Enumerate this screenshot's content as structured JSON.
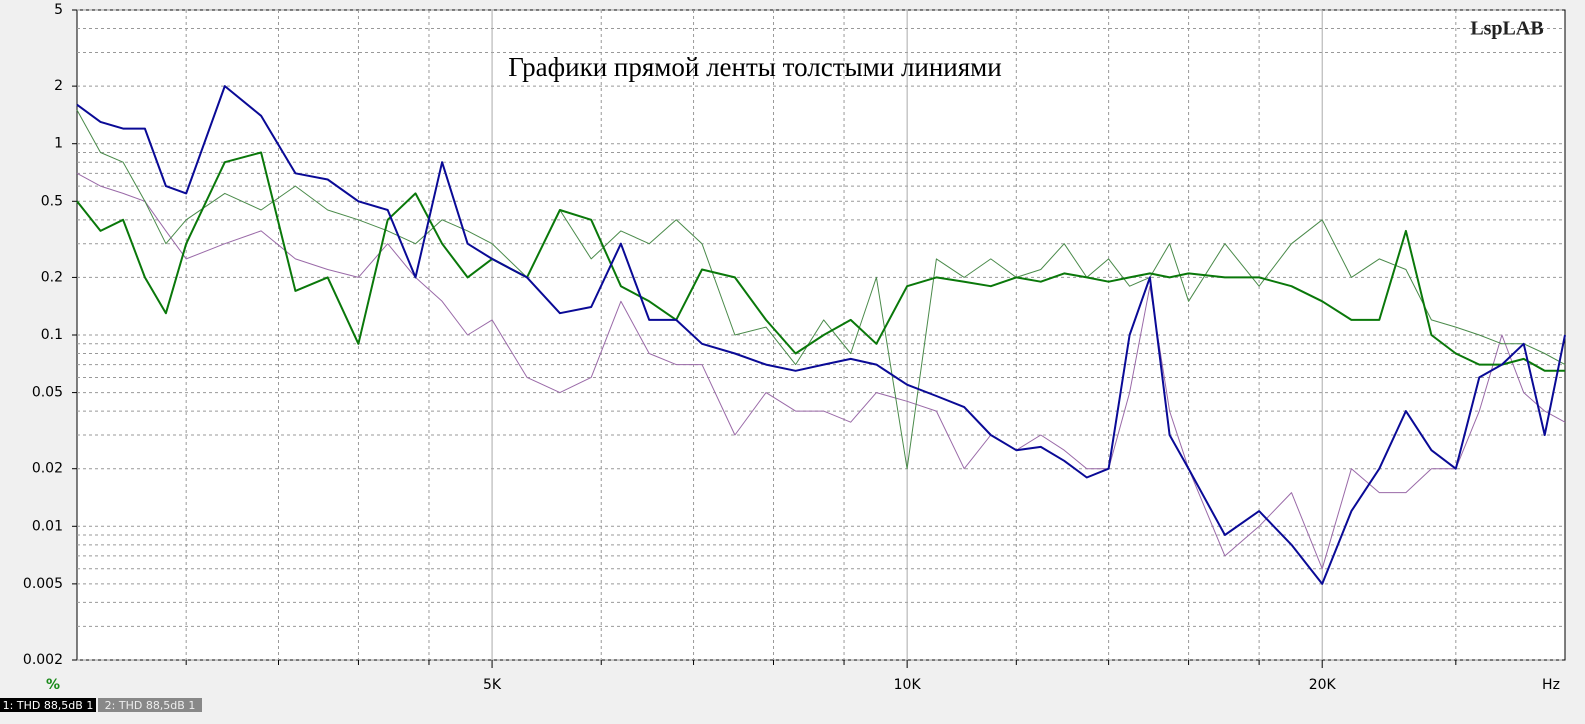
{
  "chart_data": {
    "type": "line",
    "title": "Графики прямой ленты толстыми линиями",
    "watermark": "LspLAB",
    "y_unit": "%",
    "x_unit": "Hz",
    "legend_labels": [
      "1: THD 88,5dB 1",
      "2: THD 88,5dB 1"
    ],
    "x_log": true,
    "y_log": true,
    "xlim": [
      2500,
      30000
    ],
    "ylim": [
      0.002,
      5
    ],
    "xticks": [
      {
        "value": 5000,
        "label": "5K"
      },
      {
        "value": 10000,
        "label": "10K"
      },
      {
        "value": 20000,
        "label": "20K"
      }
    ],
    "x_minor_ticks": [
      3000,
      3500,
      4000,
      4500,
      6000,
      7000,
      8000,
      9000,
      12000,
      14000,
      16000,
      18000,
      25000
    ],
    "yticks": [
      5,
      2,
      1,
      0.5,
      0.2,
      0.1,
      0.05,
      0.02,
      0.01,
      0.005,
      0.002
    ],
    "y_minor_ticks": [
      4,
      3,
      0.9,
      0.8,
      0.7,
      0.6,
      0.4,
      0.3,
      0.09,
      0.08,
      0.07,
      0.06,
      0.04,
      0.03,
      0.009,
      0.008,
      0.007,
      0.006,
      0.004,
      0.003
    ],
    "x": [
      2500,
      2600,
      2700,
      2800,
      2900,
      3000,
      3200,
      3400,
      3600,
      3800,
      4000,
      4200,
      4400,
      4600,
      4800,
      5000,
      5300,
      5600,
      5900,
      6200,
      6500,
      6800,
      7100,
      7500,
      7900,
      8300,
      8700,
      9100,
      9500,
      10000,
      10500,
      11000,
      11500,
      12000,
      12500,
      13000,
      13500,
      14000,
      14500,
      15000,
      15500,
      16000,
      17000,
      18000,
      19000,
      20000,
      21000,
      22000,
      23000,
      24000,
      25000,
      26000,
      27000,
      28000,
      29000,
      30000
    ],
    "series": [
      {
        "color": "#9a6aa8",
        "width": 1,
        "values": [
          0.7,
          0.6,
          0.55,
          0.5,
          0.35,
          0.25,
          0.3,
          0.35,
          0.25,
          0.22,
          0.2,
          0.3,
          0.2,
          0.15,
          0.1,
          0.12,
          0.06,
          0.05,
          0.06,
          0.15,
          0.08,
          0.07,
          0.07,
          0.03,
          0.05,
          0.04,
          0.04,
          0.035,
          0.05,
          0.045,
          0.04,
          0.02,
          0.03,
          0.025,
          0.03,
          0.025,
          0.02,
          0.02,
          0.05,
          0.18,
          0.04,
          0.02,
          0.007,
          0.01,
          0.015,
          0.006,
          0.02,
          0.015,
          0.015,
          0.02,
          0.02,
          0.04,
          0.1,
          0.05,
          0.04,
          0.035
        ]
      },
      {
        "color": "#4a8a4a",
        "width": 1,
        "values": [
          1.5,
          0.9,
          0.8,
          0.5,
          0.3,
          0.4,
          0.55,
          0.45,
          0.6,
          0.45,
          0.4,
          0.35,
          0.3,
          0.4,
          0.35,
          0.3,
          0.2,
          0.45,
          0.25,
          0.35,
          0.3,
          0.4,
          0.3,
          0.1,
          0.11,
          0.07,
          0.12,
          0.08,
          0.2,
          0.02,
          0.25,
          0.2,
          0.25,
          0.2,
          0.22,
          0.3,
          0.2,
          0.25,
          0.18,
          0.2,
          0.3,
          0.15,
          0.3,
          0.18,
          0.3,
          0.4,
          0.2,
          0.25,
          0.22,
          0.12,
          0.11,
          0.1,
          0.09,
          0.09,
          0.08,
          0.07
        ]
      },
      {
        "color": "#0a780a",
        "width": 2,
        "values": [
          0.5,
          0.35,
          0.4,
          0.2,
          0.13,
          0.3,
          0.8,
          0.9,
          0.17,
          0.2,
          0.09,
          0.4,
          0.55,
          0.3,
          0.2,
          0.25,
          0.2,
          0.45,
          0.4,
          0.18,
          0.15,
          0.12,
          0.22,
          0.2,
          0.12,
          0.08,
          0.1,
          0.12,
          0.09,
          0.18,
          0.2,
          0.19,
          0.18,
          0.2,
          0.19,
          0.21,
          0.2,
          0.19,
          0.2,
          0.21,
          0.2,
          0.21,
          0.2,
          0.2,
          0.18,
          0.15,
          0.12,
          0.12,
          0.35,
          0.1,
          0.08,
          0.07,
          0.07,
          0.075,
          0.065,
          0.065
        ]
      },
      {
        "color": "#0a0a96",
        "width": 2,
        "values": [
          1.6,
          1.3,
          1.2,
          1.2,
          0.6,
          0.55,
          2.0,
          1.4,
          0.7,
          0.65,
          0.5,
          0.45,
          0.2,
          0.8,
          0.3,
          0.25,
          0.2,
          0.13,
          0.14,
          0.3,
          0.12,
          0.12,
          0.09,
          0.08,
          0.07,
          0.065,
          0.07,
          0.075,
          0.07,
          0.055,
          0.048,
          0.042,
          0.03,
          0.025,
          0.026,
          0.022,
          0.018,
          0.02,
          0.1,
          0.2,
          0.03,
          0.02,
          0.009,
          0.012,
          0.008,
          0.005,
          0.012,
          0.02,
          0.04,
          0.025,
          0.02,
          0.06,
          0.07,
          0.09,
          0.03,
          0.1
        ]
      }
    ]
  }
}
